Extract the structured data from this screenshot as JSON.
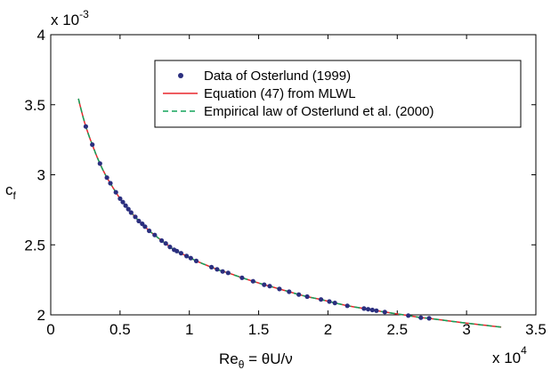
{
  "chart_data": {
    "type": "scatter",
    "title": "",
    "xlabel": "Re_θ = θU/ν",
    "xlabel_main": "Re",
    "xlabel_sub": "θ",
    "xlabel_rest": " = θU/ν",
    "ylabel": "c_f",
    "ylabel_main": "c",
    "ylabel_sub": "f",
    "x_multiplier": "x 10",
    "x_multiplier_exp": "4",
    "y_multiplier": "x 10",
    "y_multiplier_exp": "-3",
    "xlim": [
      0,
      35000
    ],
    "ylim": [
      0.002,
      0.004
    ],
    "xticks": [
      0,
      5000,
      10000,
      15000,
      20000,
      25000,
      30000,
      35000
    ],
    "xtick_labels": [
      "0",
      "0.5",
      "1",
      "1.5",
      "2",
      "2.5",
      "3",
      "3.5"
    ],
    "yticks": [
      0.002,
      0.0025,
      0.003,
      0.0035,
      0.004
    ],
    "ytick_labels": [
      "2",
      "2.5",
      "3",
      "3.5",
      "4"
    ],
    "grid": false,
    "legend_position": "top-right",
    "legend": [
      {
        "label": "Data of Osterlund (1999)",
        "style": "dot",
        "color": "#2b2f7f"
      },
      {
        "label": "Equation (47) from MLWL",
        "style": "solid",
        "color": "#e8262b"
      },
      {
        "label": "Empirical law of Osterlund et al. (2000)",
        "style": "dashed",
        "color": "#12a35a"
      }
    ],
    "curve_x_range": [
      2000,
      32500
    ],
    "series": [
      {
        "name": "Data of Osterlund (1999)",
        "style": "dot",
        "color": "#2b2f7f",
        "x": [
          2530,
          3000,
          3550,
          4050,
          4300,
          4700,
          5000,
          5200,
          5400,
          5600,
          5800,
          6100,
          6350,
          6600,
          6800,
          7100,
          7500,
          8000,
          8300,
          8600,
          8900,
          9100,
          9400,
          9800,
          10100,
          10500,
          11600,
          12000,
          12400,
          12800,
          13800,
          14600,
          15400,
          15800,
          16500,
          17200,
          17900,
          18500,
          19500,
          20100,
          20500,
          21400,
          22600,
          22900,
          23200,
          23500,
          24100,
          25800,
          26700,
          27300
        ],
        "y": [
          0.003345,
          0.003215,
          0.00308,
          0.00298,
          0.00294,
          0.002875,
          0.00283,
          0.002805,
          0.00278,
          0.002755,
          0.00273,
          0.0027,
          0.00267,
          0.00265,
          0.00263,
          0.0026,
          0.00257,
          0.00253,
          0.00251,
          0.002485,
          0.002465,
          0.002455,
          0.00244,
          0.00242,
          0.002405,
          0.002385,
          0.00234,
          0.002325,
          0.00231,
          0.0023,
          0.002265,
          0.00224,
          0.002215,
          0.002205,
          0.002185,
          0.002165,
          0.002145,
          0.00213,
          0.00211,
          0.002095,
          0.002085,
          0.002065,
          0.002045,
          0.00204,
          0.002035,
          0.00203,
          0.00202,
          0.001995,
          0.00198,
          0.001975
        ]
      }
    ]
  }
}
